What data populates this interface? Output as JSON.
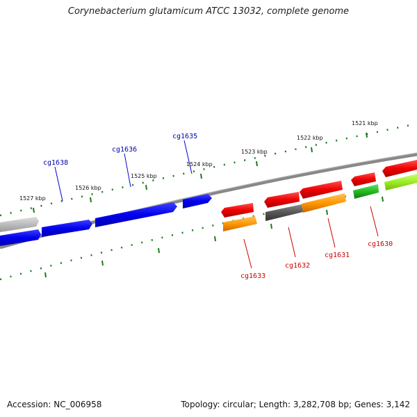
{
  "title": "Corynebacterium glutamicum ATCC 13032, complete genome",
  "footer": {
    "accession": "Accession: NC_006958",
    "topology": "Topology: circular; Length: 3,282,708 bp; Genes: 3,142"
  },
  "ruler_ticks": [
    "1521 kbp",
    "1522 kbp",
    "1523 kbp",
    "1524 kbp",
    "1525 kbp",
    "1526 kbp",
    "1527 kbp"
  ],
  "gene_labels": {
    "cg1638": "cg1638",
    "cg1636": "cg1636",
    "cg1635": "cg1635",
    "cg1633": "cg1633",
    "cg1632": "cg1632",
    "cg1631": "cg1631",
    "cg1630": "cg1630"
  },
  "colors": {
    "forward_strand": "#0000ee",
    "reverse_red": "#ee0000",
    "orange": "#ff9900",
    "dark_gray": "#555555",
    "green": "#22bb22",
    "lime": "#99ee22",
    "light_gray": "#bbbbbb",
    "tick_green": "#1a7a1a",
    "backbone": "#777777"
  }
}
